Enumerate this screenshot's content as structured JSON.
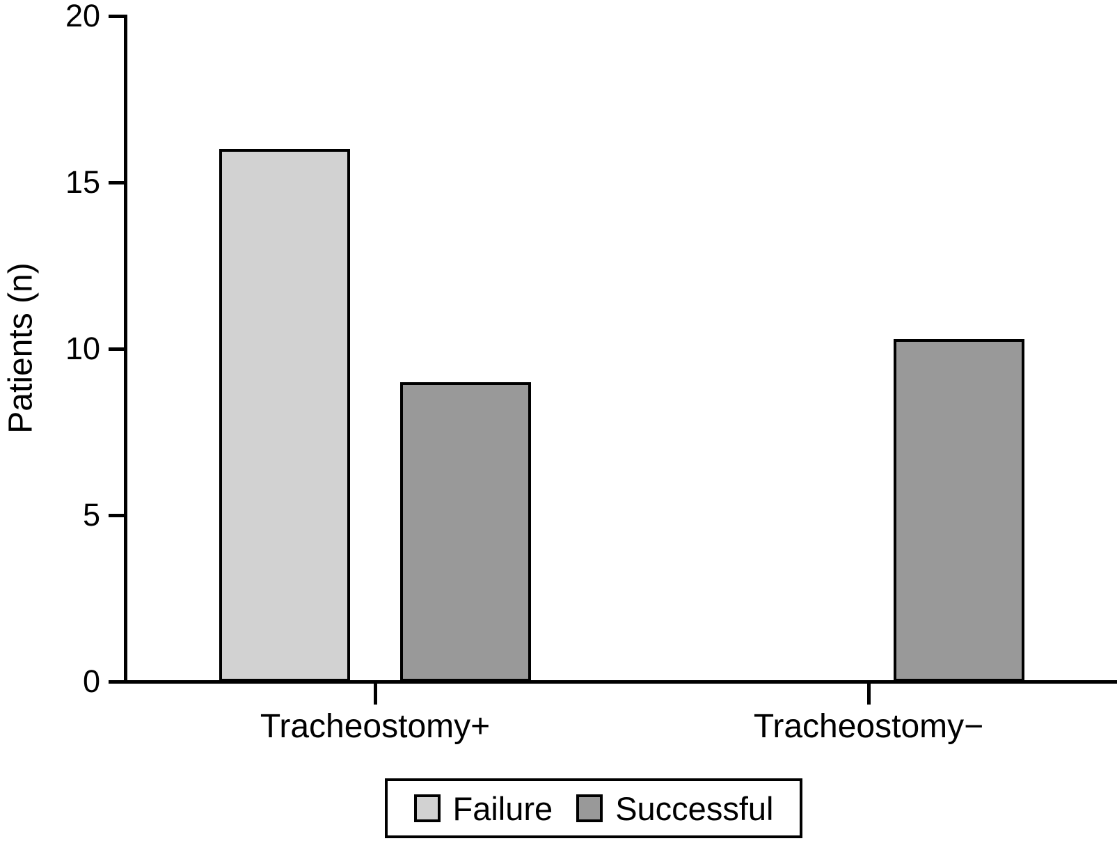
{
  "chart_data": {
    "type": "bar",
    "title": "",
    "xlabel": "",
    "ylabel": "Patients (n)",
    "categories": [
      "Tracheostomy+",
      "Tracheostomy−"
    ],
    "series": [
      {
        "name": "Failure",
        "color": "#d2d2d2",
        "values": [
          16,
          0
        ]
      },
      {
        "name": "Successful",
        "color": "#999999",
        "values": [
          9,
          10.3
        ]
      }
    ],
    "ylim": [
      0,
      20
    ],
    "yticks": [
      0,
      5,
      10,
      15,
      20
    ],
    "grid": false,
    "legend_position": "bottom-center",
    "axis_color": "#000000",
    "text_color": "#000000",
    "background_color": "#ffffff"
  }
}
